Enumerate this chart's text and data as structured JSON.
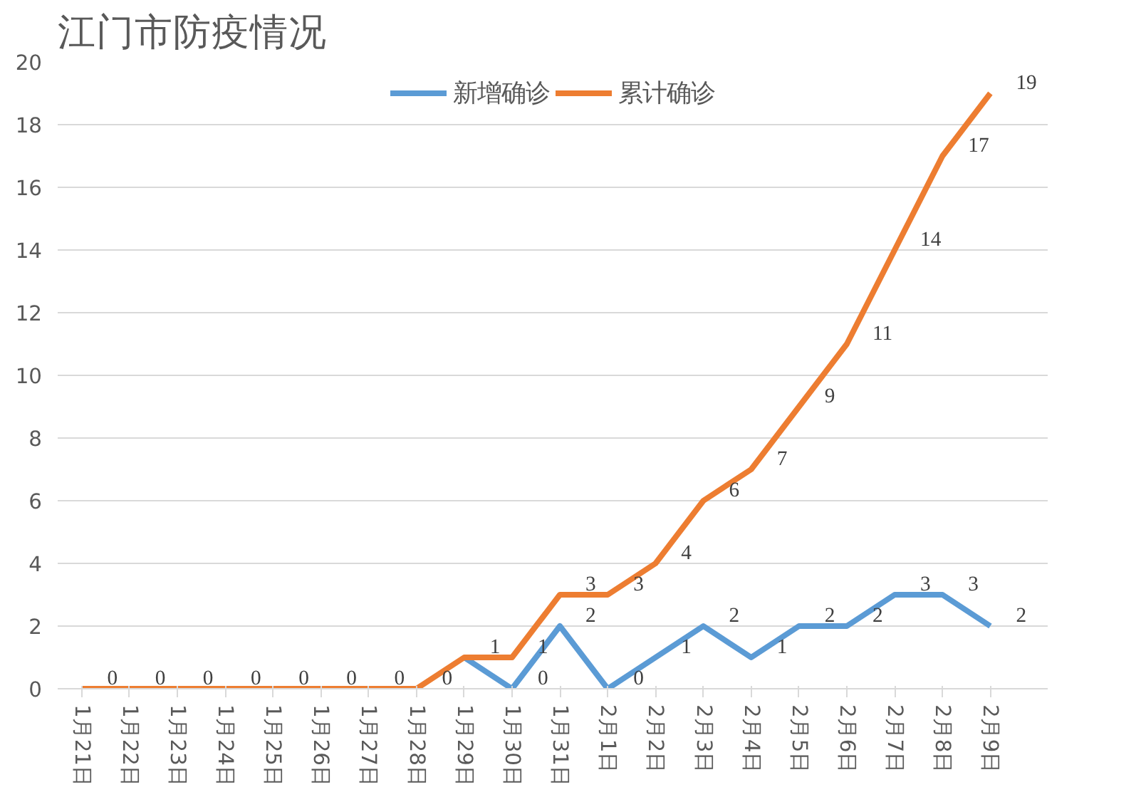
{
  "chart_data": {
    "type": "line",
    "title": "江门市防疫情况",
    "categories": [
      "1月21日",
      "1月22日",
      "1月23日",
      "1月24日",
      "1月25日",
      "1月26日",
      "1月27日",
      "1月28日",
      "1月29日",
      "1月30日",
      "1月31日",
      "2月1日",
      "2月2日",
      "2月3日",
      "2月4日",
      "2月5日",
      "2月6日",
      "2月7日",
      "2月8日",
      "2月9日"
    ],
    "series": [
      {
        "name": "新增确诊",
        "color": "#5b9bd5",
        "values": [
          null,
          null,
          null,
          null,
          null,
          null,
          null,
          null,
          1,
          0,
          2,
          0,
          1,
          2,
          1,
          2,
          2,
          3,
          3,
          2
        ],
        "value_labels": [
          null,
          null,
          null,
          null,
          null,
          null,
          null,
          null,
          null,
          "0",
          "2",
          "0",
          "1",
          "2",
          "1",
          "2",
          "2",
          "3",
          "3",
          "2"
        ]
      },
      {
        "name": "累计确诊",
        "color": "#ed7d31",
        "values": [
          0,
          0,
          0,
          0,
          0,
          0,
          0,
          0,
          1,
          1,
          3,
          3,
          4,
          6,
          7,
          9,
          11,
          14,
          17,
          19
        ],
        "value_labels": [
          "0",
          "0",
          "0",
          "0",
          "0",
          "0",
          "0",
          "0",
          "1",
          "1",
          "3",
          "3",
          "4",
          "6",
          "7",
          "9",
          "11",
          "14",
          "17",
          "19"
        ]
      }
    ],
    "ylim": [
      0,
      20
    ],
    "yticks": [
      0,
      2,
      4,
      6,
      8,
      10,
      12,
      14,
      16,
      18,
      20
    ],
    "grid": "y",
    "legend": "top",
    "marker": "none",
    "line_style": "solid"
  }
}
